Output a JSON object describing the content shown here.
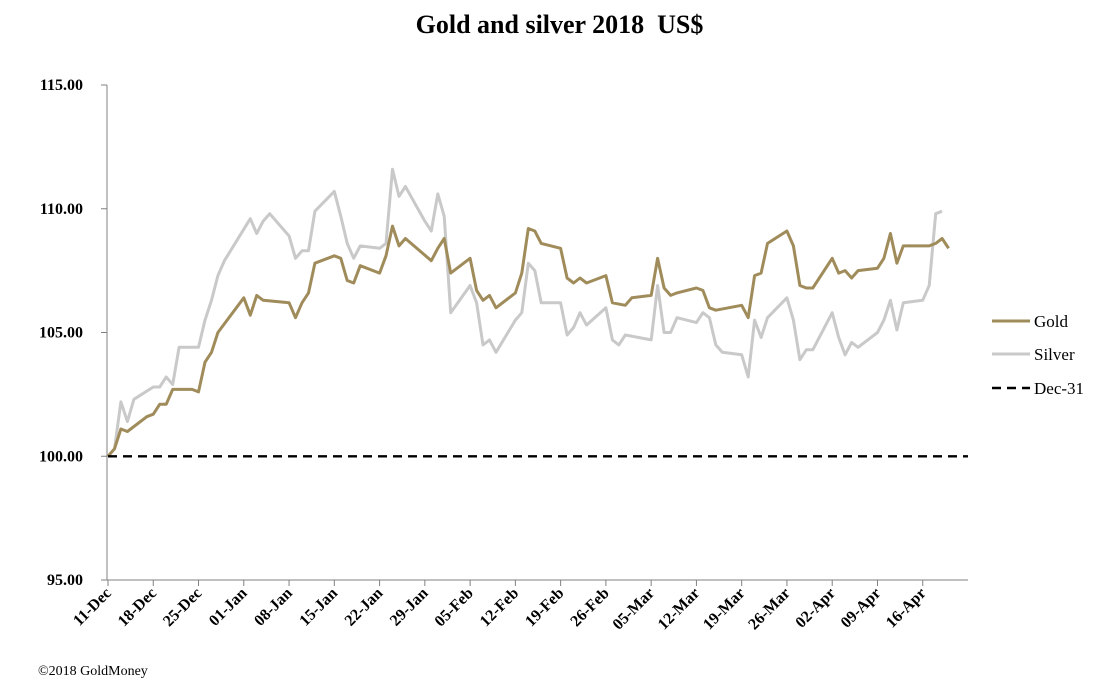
{
  "chart_data": {
    "type": "line",
    "title": "Gold and silver 2018  US$",
    "xlabel": "",
    "ylabel": "",
    "ylim": [
      95,
      115
    ],
    "y_ticks": [
      "95.00",
      "100.00",
      "105.00",
      "110.00",
      "115.00"
    ],
    "x_tick_labels": [
      "11-Dec",
      "18-Dec",
      "25-Dec",
      "01-Jan",
      "08-Jan",
      "15-Jan",
      "22-Jan",
      "29-Jan",
      "05-Feb",
      "12-Feb",
      "19-Feb",
      "26-Feb",
      "05-Mar",
      "12-Mar",
      "19-Mar",
      "26-Mar",
      "02-Apr",
      "09-Apr",
      "16-Apr"
    ],
    "x_range_days": [
      0,
      133
    ],
    "legend_position": "right",
    "grid": false,
    "series": [
      {
        "name": "Gold",
        "color": "#a08c5b",
        "points": [
          [
            0,
            100
          ],
          [
            1,
            100.3
          ],
          [
            2,
            101.1
          ],
          [
            3,
            101.0
          ],
          [
            6,
            101.6
          ],
          [
            7,
            101.7
          ],
          [
            8,
            102.1
          ],
          [
            9,
            102.1
          ],
          [
            10,
            102.7
          ],
          [
            13,
            102.7
          ],
          [
            14,
            102.6
          ],
          [
            15,
            103.8
          ],
          [
            16,
            104.2
          ],
          [
            17,
            105.0
          ],
          [
            21,
            106.4
          ],
          [
            22,
            105.7
          ],
          [
            23,
            106.5
          ],
          [
            24,
            106.3
          ],
          [
            28,
            106.2
          ],
          [
            29,
            105.6
          ],
          [
            30,
            106.2
          ],
          [
            31,
            106.6
          ],
          [
            32,
            107.8
          ],
          [
            35,
            108.1
          ],
          [
            36,
            108.0
          ],
          [
            37,
            107.1
          ],
          [
            38,
            107.0
          ],
          [
            39,
            107.7
          ],
          [
            42,
            107.4
          ],
          [
            43,
            108.1
          ],
          [
            44,
            109.3
          ],
          [
            45,
            108.5
          ],
          [
            46,
            108.8
          ],
          [
            50,
            107.9
          ],
          [
            51,
            108.4
          ],
          [
            52,
            108.8
          ],
          [
            53,
            107.4
          ],
          [
            56,
            108.0
          ],
          [
            57,
            106.7
          ],
          [
            58,
            106.3
          ],
          [
            59,
            106.5
          ],
          [
            60,
            106.0
          ],
          [
            63,
            106.6
          ],
          [
            64,
            107.4
          ],
          [
            65,
            109.2
          ],
          [
            66,
            109.1
          ],
          [
            67,
            108.6
          ],
          [
            70,
            108.4
          ],
          [
            71,
            107.2
          ],
          [
            72,
            107.0
          ],
          [
            73,
            107.2
          ],
          [
            74,
            107.0
          ],
          [
            77,
            107.3
          ],
          [
            78,
            106.2
          ],
          [
            80,
            106.1
          ],
          [
            81,
            106.4
          ],
          [
            84,
            106.5
          ],
          [
            85,
            108.0
          ],
          [
            86,
            106.8
          ],
          [
            87,
            106.5
          ],
          [
            88,
            106.6
          ],
          [
            91,
            106.8
          ],
          [
            92,
            106.7
          ],
          [
            93,
            106.0
          ],
          [
            94,
            105.9
          ],
          [
            98,
            106.1
          ],
          [
            99,
            105.6
          ],
          [
            100,
            107.3
          ],
          [
            101,
            107.4
          ],
          [
            102,
            108.6
          ],
          [
            105,
            109.1
          ],
          [
            106,
            108.5
          ],
          [
            107,
            106.9
          ],
          [
            108,
            106.8
          ],
          [
            109,
            106.8
          ],
          [
            112,
            108.0
          ],
          [
            113,
            107.4
          ],
          [
            114,
            107.5
          ],
          [
            115,
            107.2
          ],
          [
            116,
            107.5
          ],
          [
            119,
            107.6
          ],
          [
            120,
            108.0
          ],
          [
            121,
            109.0
          ],
          [
            122,
            107.8
          ],
          [
            123,
            108.5
          ],
          [
            127,
            108.5
          ],
          [
            128,
            108.6
          ],
          [
            129,
            108.8
          ],
          [
            130,
            108.4
          ]
        ]
      },
      {
        "name": "Silver",
        "color": "#c9c9c9",
        "points": [
          [
            0,
            100
          ],
          [
            1,
            100.3
          ],
          [
            2,
            102.2
          ],
          [
            3,
            101.4
          ],
          [
            4,
            102.3
          ],
          [
            7,
            102.8
          ],
          [
            8,
            102.8
          ],
          [
            9,
            103.2
          ],
          [
            10,
            102.9
          ],
          [
            11,
            104.4
          ],
          [
            14,
            104.4
          ],
          [
            15,
            105.5
          ],
          [
            16,
            106.3
          ],
          [
            17,
            107.3
          ],
          [
            18,
            107.9
          ],
          [
            22,
            109.6
          ],
          [
            23,
            109.0
          ],
          [
            24,
            109.5
          ],
          [
            25,
            109.8
          ],
          [
            28,
            108.9
          ],
          [
            29,
            108.0
          ],
          [
            30,
            108.3
          ],
          [
            31,
            108.3
          ],
          [
            32,
            109.9
          ],
          [
            35,
            110.7
          ],
          [
            36,
            109.7
          ],
          [
            37,
            108.6
          ],
          [
            38,
            108.0
          ],
          [
            39,
            108.5
          ],
          [
            42,
            108.4
          ],
          [
            43,
            108.6
          ],
          [
            44,
            111.6
          ],
          [
            45,
            110.5
          ],
          [
            46,
            110.9
          ],
          [
            49,
            109.5
          ],
          [
            50,
            109.1
          ],
          [
            51,
            110.6
          ],
          [
            52,
            109.7
          ],
          [
            53,
            105.8
          ],
          [
            56,
            106.9
          ],
          [
            57,
            106.2
          ],
          [
            58,
            104.5
          ],
          [
            59,
            104.7
          ],
          [
            60,
            104.2
          ],
          [
            63,
            105.5
          ],
          [
            64,
            105.8
          ],
          [
            65,
            107.8
          ],
          [
            66,
            107.5
          ],
          [
            67,
            106.2
          ],
          [
            70,
            106.2
          ],
          [
            71,
            104.9
          ],
          [
            72,
            105.2
          ],
          [
            73,
            105.8
          ],
          [
            74,
            105.3
          ],
          [
            77,
            106.0
          ],
          [
            78,
            104.7
          ],
          [
            79,
            104.5
          ],
          [
            80,
            104.9
          ],
          [
            84,
            104.7
          ],
          [
            85,
            106.9
          ],
          [
            86,
            105.0
          ],
          [
            87,
            105.0
          ],
          [
            88,
            105.6
          ],
          [
            91,
            105.4
          ],
          [
            92,
            105.8
          ],
          [
            93,
            105.6
          ],
          [
            94,
            104.5
          ],
          [
            95,
            104.2
          ],
          [
            98,
            104.1
          ],
          [
            99,
            103.2
          ],
          [
            100,
            105.5
          ],
          [
            101,
            104.8
          ],
          [
            102,
            105.6
          ],
          [
            105,
            106.4
          ],
          [
            106,
            105.5
          ],
          [
            107,
            103.9
          ],
          [
            108,
            104.3
          ],
          [
            109,
            104.3
          ],
          [
            112,
            105.8
          ],
          [
            113,
            104.8
          ],
          [
            114,
            104.1
          ],
          [
            115,
            104.6
          ],
          [
            116,
            104.4
          ],
          [
            119,
            105.0
          ],
          [
            120,
            105.5
          ],
          [
            121,
            106.3
          ],
          [
            122,
            105.1
          ],
          [
            123,
            106.2
          ],
          [
            126,
            106.3
          ],
          [
            127,
            106.9
          ],
          [
            128,
            109.8
          ],
          [
            129,
            109.9
          ]
        ]
      },
      {
        "name": "Dec-31",
        "color": "#000000",
        "dashed": true,
        "points": [
          [
            0,
            100
          ],
          [
            133,
            100
          ]
        ]
      }
    ]
  },
  "footer": {
    "copyright": "©2018 GoldMoney"
  }
}
